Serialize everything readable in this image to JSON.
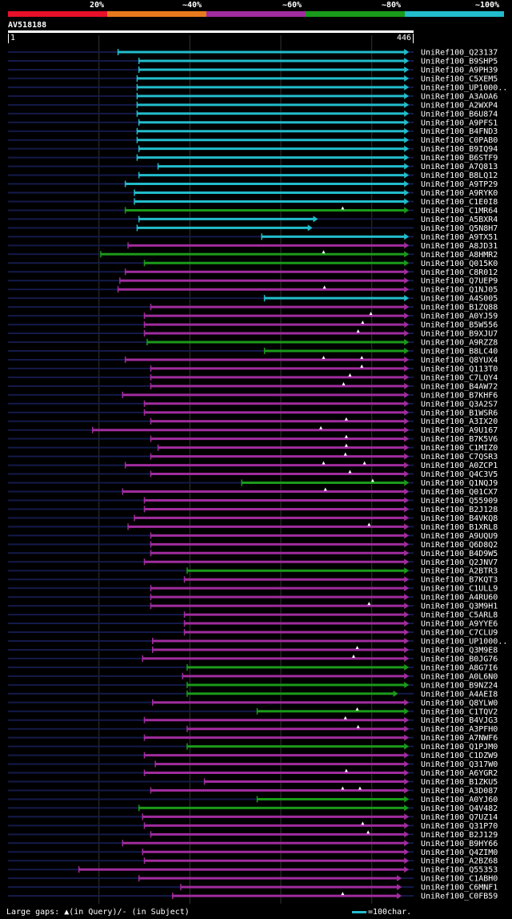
{
  "legend": {
    "labels": [
      "20%",
      "~40%",
      "~60%",
      "~80%",
      "~100%"
    ],
    "colors": [
      "#e8102a",
      "#e87a1e",
      "#a02c9e",
      "#1a9a1a",
      "#22bccc"
    ]
  },
  "query": {
    "id": "AV518188",
    "start": "1",
    "end": "446"
  },
  "footer": {
    "left": "Large gaps: ▲(in Query)/- (in Subject)",
    "scale": "=100char."
  },
  "chart_data": {
    "type": "alignment",
    "query_length": 446,
    "hits": [
      {
        "id": "UniRef100_Q23137",
        "start": 121,
        "end": 440,
        "identity": 100
      },
      {
        "id": "UniRef100_B9SHP5",
        "start": 144,
        "end": 440,
        "identity": 100
      },
      {
        "id": "UniRef100_A9PH39",
        "start": 144,
        "end": 440,
        "identity": 100
      },
      {
        "id": "UniRef100_C5XEM5",
        "start": 142,
        "end": 440,
        "identity": 100
      },
      {
        "id": "UniRef100_UP1000..",
        "start": 142,
        "end": 440,
        "identity": 100
      },
      {
        "id": "UniRef100_A3AOA6",
        "start": 142,
        "end": 440,
        "identity": 100
      },
      {
        "id": "UniRef100_A2WXP4",
        "start": 142,
        "end": 440,
        "identity": 100
      },
      {
        "id": "UniRef100_B6U874",
        "start": 142,
        "end": 440,
        "identity": 100
      },
      {
        "id": "UniRef100_A9PFS1",
        "start": 144,
        "end": 440,
        "identity": 100
      },
      {
        "id": "UniRef100_B4FND3",
        "start": 142,
        "end": 440,
        "identity": 100
      },
      {
        "id": "UniRef100_C0PAB0",
        "start": 142,
        "end": 440,
        "identity": 100
      },
      {
        "id": "UniRef100_B9IQ94",
        "start": 144,
        "end": 440,
        "identity": 100
      },
      {
        "id": "UniRef100_B6STF9",
        "start": 142,
        "end": 440,
        "identity": 100
      },
      {
        "id": "UniRef100_A7Q813",
        "start": 165,
        "end": 440,
        "identity": 100
      },
      {
        "id": "UniRef100_B8LQ12",
        "start": 144,
        "end": 440,
        "identity": 100
      },
      {
        "id": "UniRef100_A9TP29",
        "start": 129,
        "end": 440,
        "identity": 100
      },
      {
        "id": "UniRef100_A9RYK0",
        "start": 139,
        "end": 440,
        "identity": 100
      },
      {
        "id": "UniRef100_C1E0I8",
        "start": 139,
        "end": 440,
        "identity": 100
      },
      {
        "id": "UniRef100_C1MR64",
        "start": 129,
        "end": 440,
        "identity": 80,
        "gaps": [
          368
        ]
      },
      {
        "id": "UniRef100_A5BXR4",
        "start": 144,
        "end": 340,
        "identity": 100
      },
      {
        "id": "UniRef100_Q5N8H7",
        "start": 142,
        "end": 334,
        "identity": 100
      },
      {
        "id": "UniRef100_A9TX51",
        "start": 279,
        "end": 440,
        "identity": 100
      },
      {
        "id": "UniRef100_A8JD31",
        "start": 132,
        "end": 440,
        "identity": 60
      },
      {
        "id": "UniRef100_A8HMR2",
        "start": 102,
        "end": 440,
        "identity": 80,
        "gaps": [
          347
        ]
      },
      {
        "id": "UniRef100_Q015K0",
        "start": 150,
        "end": 440,
        "identity": 80
      },
      {
        "id": "UniRef100_C8R012",
        "start": 129,
        "end": 440,
        "identity": 60
      },
      {
        "id": "UniRef100_Q7UEP9",
        "start": 123,
        "end": 440,
        "identity": 60
      },
      {
        "id": "UniRef100_Q1NJ05",
        "start": 121,
        "end": 440,
        "identity": 60,
        "gaps": [
          348
        ]
      },
      {
        "id": "UniRef100_A4S005",
        "start": 282,
        "end": 440,
        "identity": 100
      },
      {
        "id": "UniRef100_B1ZQ88",
        "start": 157,
        "end": 440,
        "identity": 60
      },
      {
        "id": "UniRef100_A0YJ59",
        "start": 150,
        "end": 440,
        "identity": 60,
        "gaps": [
          399
        ]
      },
      {
        "id": "UniRef100_B5W556",
        "start": 150,
        "end": 440,
        "identity": 60,
        "gaps": [
          390
        ]
      },
      {
        "id": "UniRef100_B9XJU7",
        "start": 150,
        "end": 440,
        "identity": 60,
        "gaps": [
          385
        ]
      },
      {
        "id": "UniRef100_A9RZZ8",
        "start": 153,
        "end": 440,
        "identity": 80
      },
      {
        "id": "UniRef100_B8LC40",
        "start": 282,
        "end": 440,
        "identity": 80
      },
      {
        "id": "UniRef100_Q8YUX4",
        "start": 129,
        "end": 440,
        "identity": 60,
        "gaps": [
          347,
          389
        ]
      },
      {
        "id": "UniRef100_Q113T0",
        "start": 157,
        "end": 440,
        "identity": 60,
        "gaps": [
          389
        ]
      },
      {
        "id": "UniRef100_C7LQY4",
        "start": 157,
        "end": 440,
        "identity": 60,
        "gaps": [
          376
        ]
      },
      {
        "id": "UniRef100_B4AW72",
        "start": 157,
        "end": 440,
        "identity": 60,
        "gaps": [
          369
        ]
      },
      {
        "id": "UniRef100_B7KHF6",
        "start": 126,
        "end": 440,
        "identity": 60
      },
      {
        "id": "UniRef100_Q3A2S7",
        "start": 150,
        "end": 440,
        "identity": 60
      },
      {
        "id": "UniRef100_B1WSR6",
        "start": 150,
        "end": 440,
        "identity": 60
      },
      {
        "id": "UniRef100_A3IX20",
        "start": 157,
        "end": 440,
        "identity": 60,
        "gaps": [
          372
        ]
      },
      {
        "id": "UniRef100_A9U167",
        "start": 93,
        "end": 440,
        "identity": 60,
        "gaps": [
          344
        ]
      },
      {
        "id": "UniRef100_B7K5V6",
        "start": 157,
        "end": 440,
        "identity": 60,
        "gaps": [
          372
        ]
      },
      {
        "id": "UniRef100_C1MIZ0",
        "start": 165,
        "end": 440,
        "identity": 60,
        "gaps": [
          372
        ]
      },
      {
        "id": "UniRef100_C7QSR3",
        "start": 157,
        "end": 440,
        "identity": 60,
        "gaps": [
          371
        ]
      },
      {
        "id": "UniRef100_A0ZCP1",
        "start": 129,
        "end": 440,
        "identity": 60,
        "gaps": [
          347,
          392
        ]
      },
      {
        "id": "UniRef100_Q4C3V5",
        "start": 157,
        "end": 440,
        "identity": 60,
        "gaps": [
          376
        ]
      },
      {
        "id": "UniRef100_Q1NQJ9",
        "start": 257,
        "end": 440,
        "identity": 80,
        "gaps": [
          401
        ]
      },
      {
        "id": "UniRef100_Q01CX7",
        "start": 126,
        "end": 440,
        "identity": 60,
        "gaps": [
          349
        ]
      },
      {
        "id": "UniRef100_Q55909",
        "start": 150,
        "end": 440,
        "identity": 60
      },
      {
        "id": "UniRef100_B2J128",
        "start": 150,
        "end": 440,
        "identity": 60
      },
      {
        "id": "UniRef100_B4VKQ8",
        "start": 139,
        "end": 440,
        "identity": 60
      },
      {
        "id": "UniRef100_B1XRL8",
        "start": 132,
        "end": 440,
        "identity": 60,
        "gaps": [
          397
        ]
      },
      {
        "id": "UniRef100_A9UQU9",
        "start": 157,
        "end": 440,
        "identity": 60
      },
      {
        "id": "UniRef100_Q6D8Q2",
        "start": 157,
        "end": 440,
        "identity": 60
      },
      {
        "id": "UniRef100_B4D9W5",
        "start": 157,
        "end": 440,
        "identity": 60
      },
      {
        "id": "UniRef100_Q2JNV7",
        "start": 150,
        "end": 440,
        "identity": 60
      },
      {
        "id": "UniRef100_A2BTR3",
        "start": 197,
        "end": 440,
        "identity": 80
      },
      {
        "id": "UniRef100_B7KQT3",
        "start": 194,
        "end": 440,
        "identity": 60
      },
      {
        "id": "UniRef100_C1ULL9",
        "start": 157,
        "end": 440,
        "identity": 60
      },
      {
        "id": "UniRef100_A4RU60",
        "start": 157,
        "end": 440,
        "identity": 60
      },
      {
        "id": "UniRef100_Q3M9H1",
        "start": 157,
        "end": 440,
        "identity": 60,
        "gaps": [
          397
        ]
      },
      {
        "id": "UniRef100_C5ARL8",
        "start": 194,
        "end": 440,
        "identity": 60
      },
      {
        "id": "UniRef100_A9YYE6",
        "start": 194,
        "end": 440,
        "identity": 60
      },
      {
        "id": "UniRef100_C7CLU9",
        "start": 194,
        "end": 440,
        "identity": 60
      },
      {
        "id": "UniRef100_UP1000..",
        "start": 159,
        "end": 440,
        "identity": 60
      },
      {
        "id": "UniRef100_Q3M9E8",
        "start": 159,
        "end": 440,
        "identity": 60,
        "gaps": [
          384
        ]
      },
      {
        "id": "UniRef100_B0JG76",
        "start": 148,
        "end": 440,
        "identity": 60,
        "gaps": [
          380
        ]
      },
      {
        "id": "UniRef100_A8G7I6",
        "start": 197,
        "end": 440,
        "identity": 80
      },
      {
        "id": "UniRef100_A0L6N0",
        "start": 192,
        "end": 440,
        "identity": 60
      },
      {
        "id": "UniRef100_B9NZ24",
        "start": 197,
        "end": 440,
        "identity": 80
      },
      {
        "id": "UniRef100_A4AEI8",
        "start": 197,
        "end": 428,
        "identity": 80
      },
      {
        "id": "UniRef100_Q8YLW0",
        "start": 159,
        "end": 440,
        "identity": 60
      },
      {
        "id": "UniRef100_C1TQV2",
        "start": 274,
        "end": 440,
        "identity": 80,
        "gaps": [
          384
        ]
      },
      {
        "id": "UniRef100_B4VJG3",
        "start": 150,
        "end": 440,
        "identity": 60,
        "gaps": [
          371
        ]
      },
      {
        "id": "UniRef100_A3PFH0",
        "start": 197,
        "end": 440,
        "identity": 60,
        "gaps": [
          385
        ]
      },
      {
        "id": "UniRef100_A7NWF6",
        "start": 150,
        "end": 440,
        "identity": 60
      },
      {
        "id": "UniRef100_Q1PJM0",
        "start": 197,
        "end": 440,
        "identity": 80
      },
      {
        "id": "UniRef100_C1DZW9",
        "start": 150,
        "end": 440,
        "identity": 60
      },
      {
        "id": "UniRef100_Q317W0",
        "start": 162,
        "end": 440,
        "identity": 60
      },
      {
        "id": "UniRef100_A6YGR2",
        "start": 150,
        "end": 440,
        "identity": 60,
        "gaps": [
          372
        ]
      },
      {
        "id": "UniRef100_B1ZKU5",
        "start": 216,
        "end": 440,
        "identity": 60
      },
      {
        "id": "UniRef100_A3D087",
        "start": 157,
        "end": 440,
        "identity": 60,
        "gaps": [
          368,
          387
        ]
      },
      {
        "id": "UniRef100_A0YJ60",
        "start": 274,
        "end": 440,
        "identity": 80
      },
      {
        "id": "UniRef100_Q4V482",
        "start": 144,
        "end": 440,
        "identity": 80
      },
      {
        "id": "UniRef100_Q7UZ14",
        "start": 148,
        "end": 440,
        "identity": 60
      },
      {
        "id": "UniRef100_Q31P70",
        "start": 150,
        "end": 440,
        "identity": 60,
        "gaps": [
          390
        ]
      },
      {
        "id": "UniRef100_B2J129",
        "start": 157,
        "end": 440,
        "identity": 60,
        "gaps": [
          396
        ]
      },
      {
        "id": "UniRef100_B9HY66",
        "start": 126,
        "end": 440,
        "identity": 60
      },
      {
        "id": "UniRef100_Q4ZIM0",
        "start": 148,
        "end": 440,
        "identity": 60
      },
      {
        "id": "UniRef100_A2BZ68",
        "start": 150,
        "end": 440,
        "identity": 60
      },
      {
        "id": "UniRef100_Q55353",
        "start": 78,
        "end": 440,
        "identity": 60
      },
      {
        "id": "UniRef100_C1ABH0",
        "start": 144,
        "end": 432,
        "identity": 60
      },
      {
        "id": "UniRef100_C6MNF1",
        "start": 190,
        "end": 432,
        "identity": 60
      },
      {
        "id": "UniRef100_C0FB59",
        "start": 181,
        "end": 432,
        "identity": 60,
        "gaps": [
          368
        ]
      }
    ]
  }
}
